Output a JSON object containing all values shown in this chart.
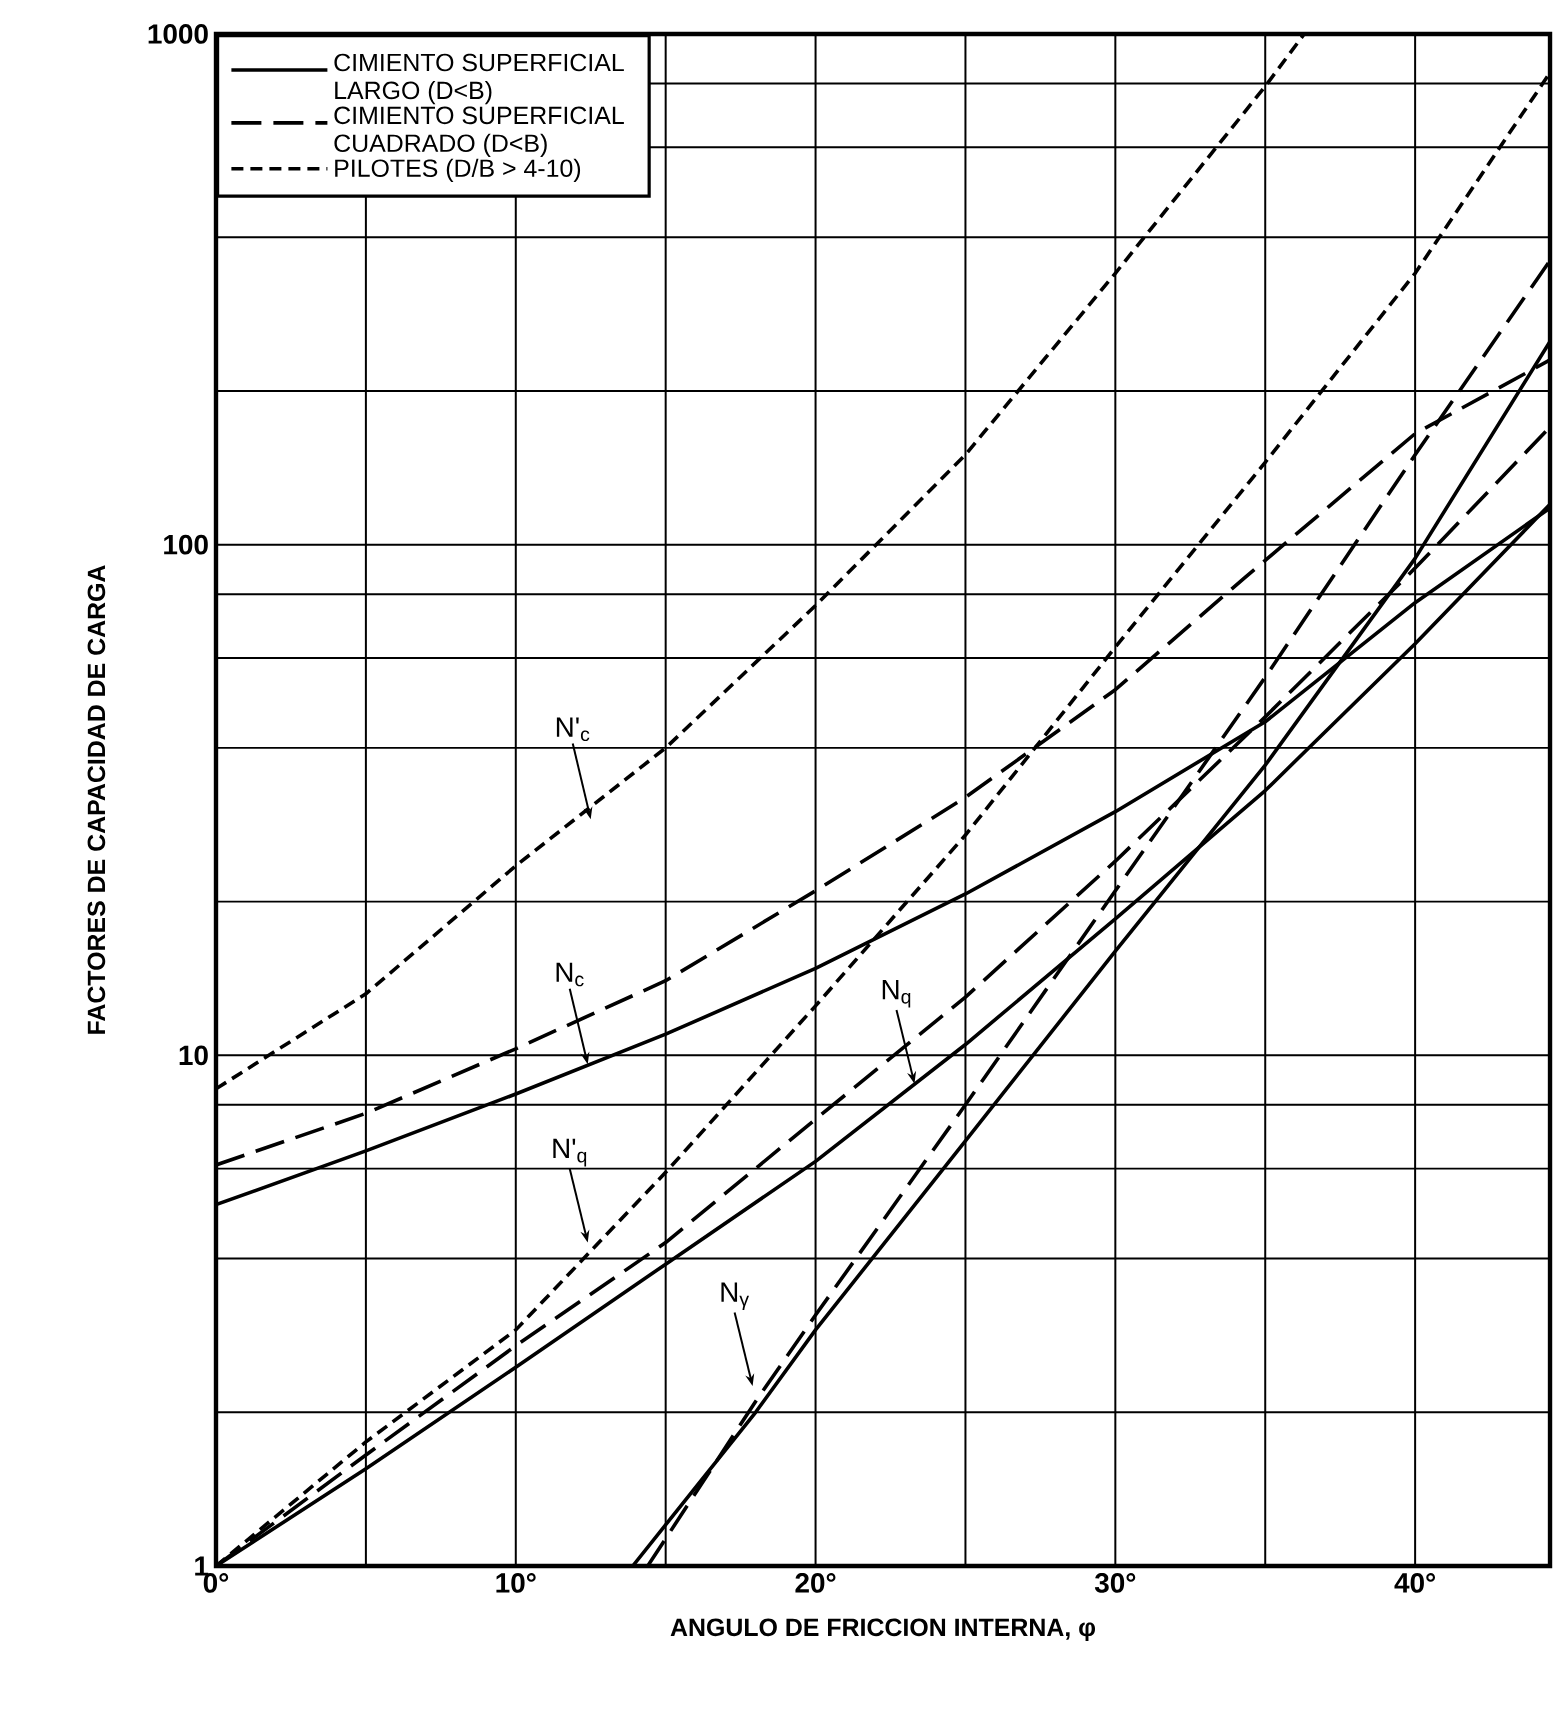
{
  "chart_data": {
    "type": "line",
    "xlabel": "ANGULO DE FRICCION INTERNA, φ",
    "ylabel": "FACTORES DE CAPACIDAD DE CARGA",
    "log": "y",
    "grid": true,
    "legend": "top left",
    "xlim": [
      0,
      44.5
    ],
    "xticks": [
      {
        "value": 0,
        "label": "0°"
      },
      {
        "value": 5,
        "label": null
      },
      {
        "value": 10,
        "label": "10°"
      },
      {
        "value": 15,
        "label": null
      },
      {
        "value": 20,
        "label": "20°"
      },
      {
        "value": 25,
        "label": null
      },
      {
        "value": 30,
        "label": "30°"
      },
      {
        "value": 35,
        "label": null
      },
      {
        "value": 40,
        "label": "40°"
      }
    ],
    "ylim": [
      1,
      1000
    ],
    "yticks": [
      1,
      {
        "value": 2,
        "label": null
      },
      {
        "value": 4,
        "label": null
      },
      {
        "value": 6,
        "label": null
      },
      {
        "value": 8,
        "label": null
      },
      10,
      {
        "value": 20,
        "label": null
      },
      {
        "value": 40,
        "label": null
      },
      {
        "value": 60,
        "label": null
      },
      {
        "value": 80,
        "label": null
      },
      100,
      {
        "value": 200,
        "label": null
      },
      {
        "value": 400,
        "label": null
      },
      {
        "value": 600,
        "label": null
      },
      {
        "value": 800,
        "label": null
      },
      1000
    ],
    "series": [
      {
        "name": "CIMIENTO SUPERFICIAL LARGO (D<B)",
        "color": "#000000",
        "line_style": "solid",
        "x": [
          0,
          5,
          10,
          15,
          20,
          25,
          30,
          35,
          40,
          44.5
        ],
        "values": [
          5.1,
          6.5,
          8.4,
          11,
          14.8,
          20.7,
          30,
          45,
          77,
          118
        ]
      },
      {
        "name": "CIMIENTO SUPERFICIAL CUADRADO (D<B)",
        "color": "#000000",
        "line_style": "dashed",
        "x": [
          0,
          5,
          10,
          15,
          20,
          25,
          30,
          34.3,
          40,
          44.5
        ],
        "values": [
          6.1,
          7.7,
          10.3,
          14,
          21,
          32,
          52,
          86,
          165,
          230
        ]
      },
      {
        "name": "PILOTES (D/B > 4-10)",
        "color": "#000000",
        "line_style": "dotted",
        "x": [
          0,
          5,
          10,
          15,
          20,
          25,
          30,
          35,
          36.3
        ],
        "values": [
          8.6,
          13.2,
          23.5,
          40,
          76,
          150,
          340,
          790,
          1000
        ]
      },
      {
        "color": "#000000",
        "line_style": "solid",
        "x": [
          0,
          5,
          10,
          15,
          20,
          25,
          30,
          35,
          40,
          44.5
        ],
        "values": [
          1,
          1.55,
          2.45,
          3.9,
          6.2,
          10.5,
          18.5,
          33,
          64,
          120
        ]
      },
      {
        "color": "#000000",
        "line_style": "dashed",
        "x": [
          0,
          5,
          10,
          15,
          20,
          25,
          30,
          35,
          40,
          44.5
        ],
        "values": [
          1,
          1.65,
          2.7,
          4.3,
          7.5,
          13,
          24,
          46,
          90,
          170
        ]
      },
      {
        "color": "#000000",
        "line_style": "dotted",
        "x": [
          0,
          5,
          10,
          15,
          20,
          25,
          30,
          35,
          40,
          44.5
        ],
        "values": [
          1,
          1.75,
          2.9,
          5.9,
          12.5,
          27,
          63,
          145,
          340,
          840
        ]
      },
      {
        "color": "#000000",
        "line_style": "solid",
        "x": [
          13.9,
          18,
          20,
          25,
          30,
          35,
          40,
          44.5
        ],
        "values": [
          1,
          2,
          2.9,
          6.8,
          16,
          37,
          94,
          250
        ]
      },
      {
        "color": "#000000",
        "line_style": "dashed",
        "x": [
          14.4,
          18,
          20,
          25,
          30,
          35,
          40,
          44.5
        ],
        "values": [
          1,
          2.1,
          3.1,
          8,
          21,
          55,
          150,
          360
        ]
      }
    ],
    "annotations": [
      {
        "text": "N'$_{c}$",
        "x": 12.5,
        "y": 29
      },
      {
        "text": "N$_{c}$",
        "x": 12.4,
        "y": 9.6
      },
      {
        "text": "N'$_{q}$",
        "x": 12.4,
        "y": 4.3
      },
      {
        "text": "N$_{q}$",
        "x": 23.3,
        "y": 8.8
      },
      {
        "text": "N$_{γ}$",
        "x": 17.9,
        "y": 2.25
      }
    ]
  }
}
